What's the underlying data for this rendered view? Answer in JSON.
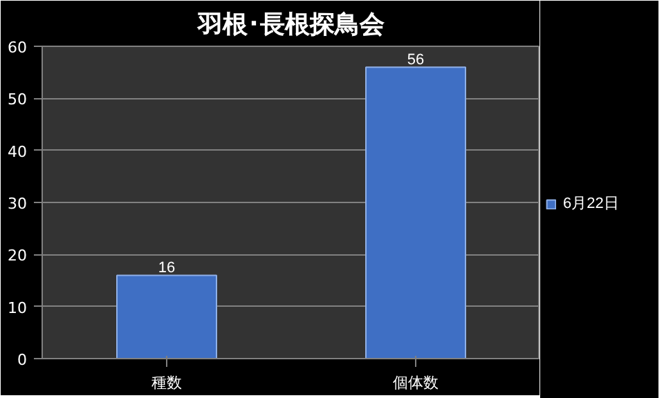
{
  "chart_data": {
    "type": "bar",
    "title": "羽根･長根探鳥会",
    "categories": [
      "種数",
      "個体数"
    ],
    "series": [
      {
        "name": "6月22日",
        "color": "#3f6fc4",
        "values": [
          16,
          56
        ]
      }
    ],
    "ylim": [
      0,
      60
    ],
    "yticks": [
      0,
      10,
      20,
      30,
      40,
      50,
      60
    ],
    "grid": "y",
    "legend": "right",
    "data_labels": true
  }
}
